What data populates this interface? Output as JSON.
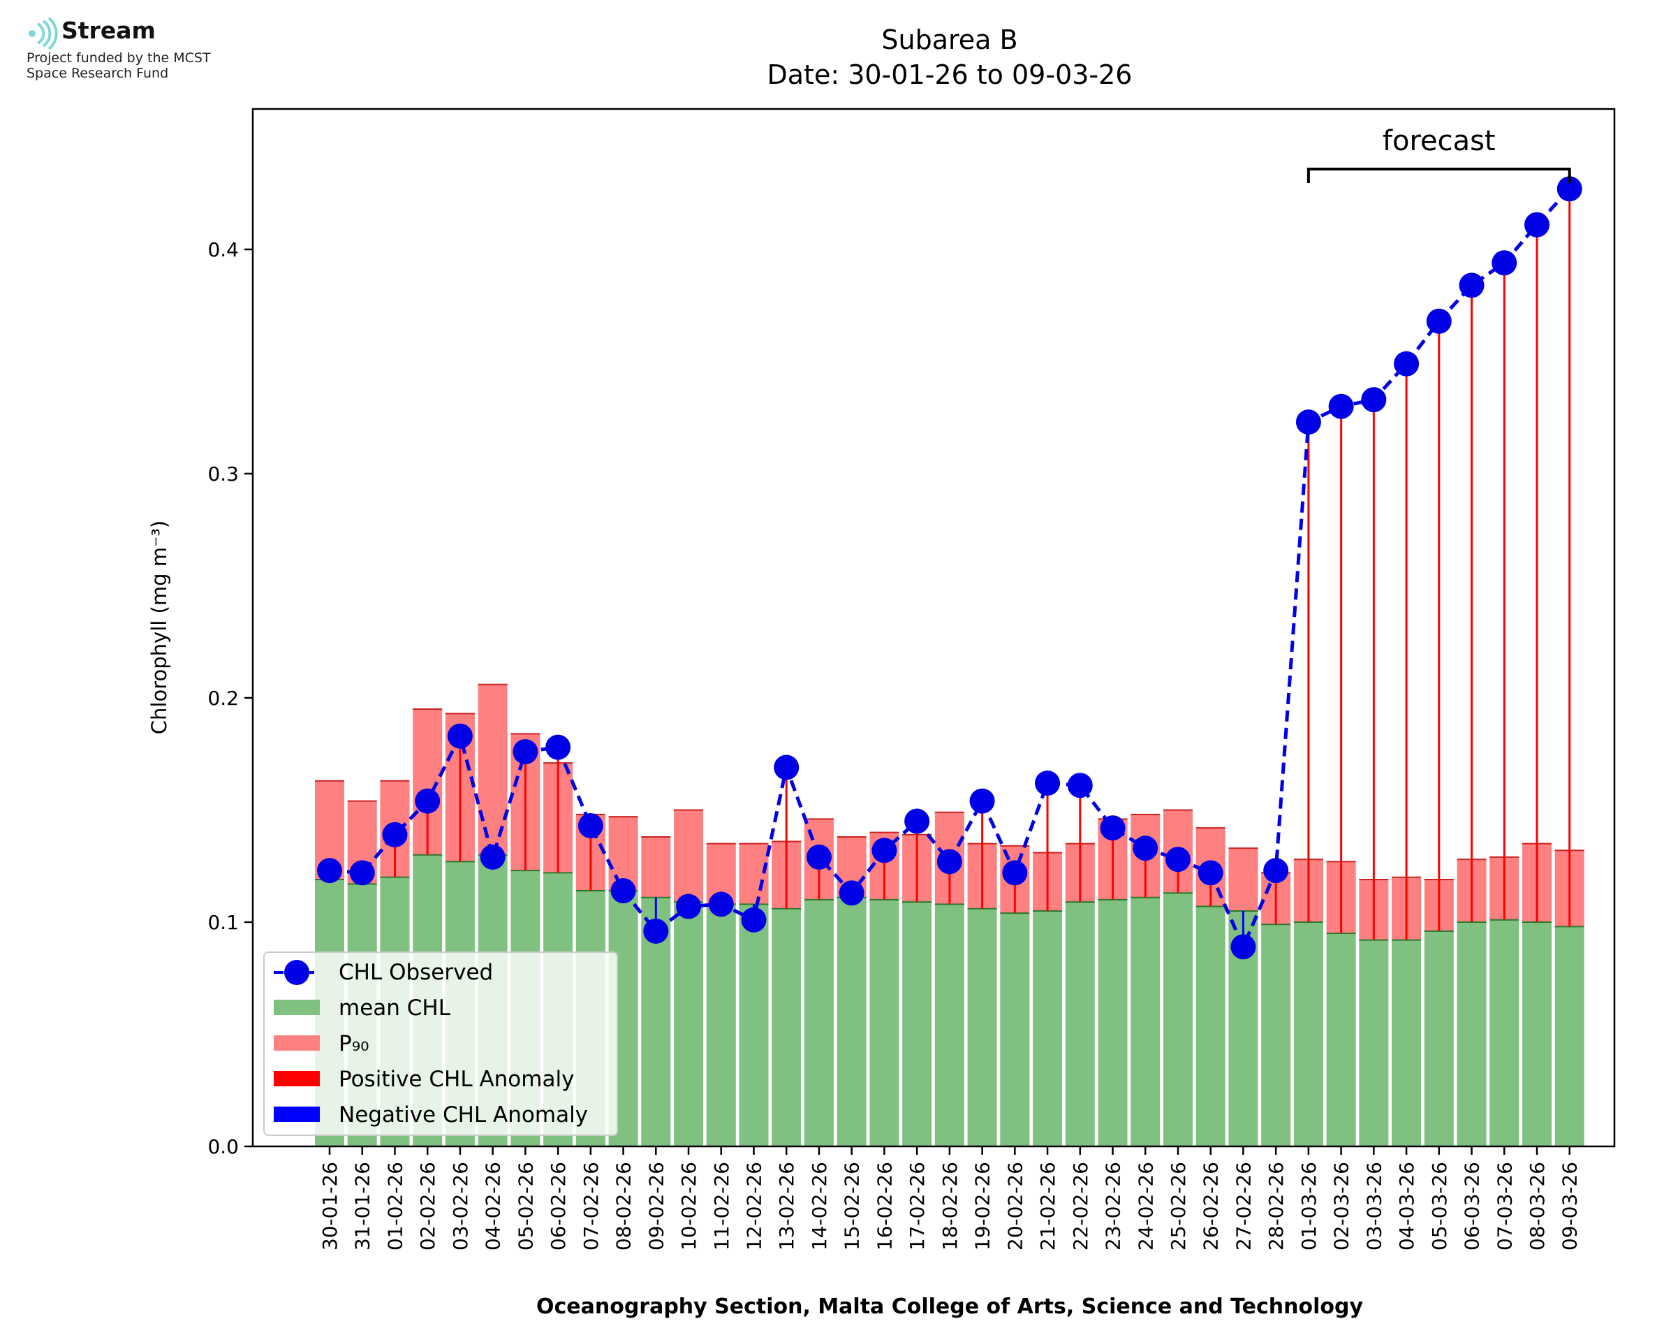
{
  "logo": {
    "name": "Stream",
    "line1": "Project funded by the MCST",
    "line2": "Space Research Fund"
  },
  "colors": {
    "mean": "#80c080",
    "p90": "#ff8080",
    "observed": "#0000e6",
    "positive_anomaly": "#ff0000",
    "negative_anomaly": "#0000ff"
  },
  "chart_data": {
    "type": "bar",
    "title": "Subarea B",
    "subtitle": "Date: 30-01-26 to 09-03-26",
    "xlabel": "Oceanography Section, Malta College of Arts, Science and Technology",
    "ylabel": "Chlorophyll (mg m⁻³)",
    "ylim": [
      0,
      0.47
    ],
    "yticks": [
      "0.0",
      "0.1",
      "0.2",
      "0.3",
      "0.4"
    ],
    "annotation": "forecast",
    "forecast_range": [
      "01-03-26",
      "09-03-26"
    ],
    "categories": [
      "30-01-26",
      "31-01-26",
      "01-02-26",
      "02-02-26",
      "03-02-26",
      "04-02-26",
      "05-02-26",
      "06-02-26",
      "07-02-26",
      "08-02-26",
      "09-02-26",
      "10-02-26",
      "11-02-26",
      "12-02-26",
      "13-02-26",
      "14-02-26",
      "15-02-26",
      "16-02-26",
      "17-02-26",
      "18-02-26",
      "19-02-26",
      "20-02-26",
      "21-02-26",
      "22-02-26",
      "23-02-26",
      "24-02-26",
      "25-02-26",
      "26-02-26",
      "27-02-26",
      "28-02-26",
      "01-03-26",
      "02-03-26",
      "03-03-26",
      "04-03-26",
      "05-03-26",
      "06-03-26",
      "07-03-26",
      "08-03-26",
      "09-03-26"
    ],
    "series": [
      {
        "name": "mean CHL",
        "type": "bar",
        "values": [
          0.119,
          0.117,
          0.12,
          0.13,
          0.127,
          0.13,
          0.123,
          0.122,
          0.114,
          0.114,
          0.111,
          0.109,
          0.108,
          0.108,
          0.106,
          0.11,
          0.111,
          0.11,
          0.109,
          0.108,
          0.106,
          0.104,
          0.105,
          0.109,
          0.11,
          0.111,
          0.113,
          0.107,
          0.105,
          0.099,
          0.1,
          0.095,
          0.092,
          0.092,
          0.096,
          0.1,
          0.101,
          0.1,
          0.098
        ]
      },
      {
        "name": "P₉₀",
        "type": "bar",
        "values": [
          0.163,
          0.154,
          0.163,
          0.195,
          0.193,
          0.206,
          0.184,
          0.171,
          0.148,
          0.147,
          0.138,
          0.15,
          0.135,
          0.135,
          0.136,
          0.146,
          0.138,
          0.14,
          0.139,
          0.149,
          0.135,
          0.134,
          0.131,
          0.135,
          0.146,
          0.148,
          0.15,
          0.142,
          0.133,
          0.122,
          0.128,
          0.127,
          0.119,
          0.12,
          0.119,
          0.128,
          0.129,
          0.135,
          0.132
        ]
      },
      {
        "name": "CHL Observed",
        "type": "line",
        "values": [
          0.123,
          0.122,
          0.139,
          0.154,
          0.183,
          0.129,
          0.176,
          0.178,
          0.143,
          0.114,
          0.096,
          0.107,
          0.108,
          0.101,
          0.169,
          0.129,
          0.113,
          0.132,
          0.145,
          0.127,
          0.154,
          0.122,
          0.162,
          0.161,
          0.142,
          0.133,
          0.128,
          0.122,
          0.089,
          0.123,
          0.323,
          0.33,
          0.333,
          0.349,
          0.368,
          0.384,
          0.394,
          0.411,
          0.427
        ]
      }
    ],
    "legend": {
      "placement": "lower-left",
      "entries": [
        "CHL Observed",
        "mean CHL",
        "P₉₀",
        "Positive CHL Anomaly",
        "Negative CHL Anomaly"
      ]
    }
  }
}
